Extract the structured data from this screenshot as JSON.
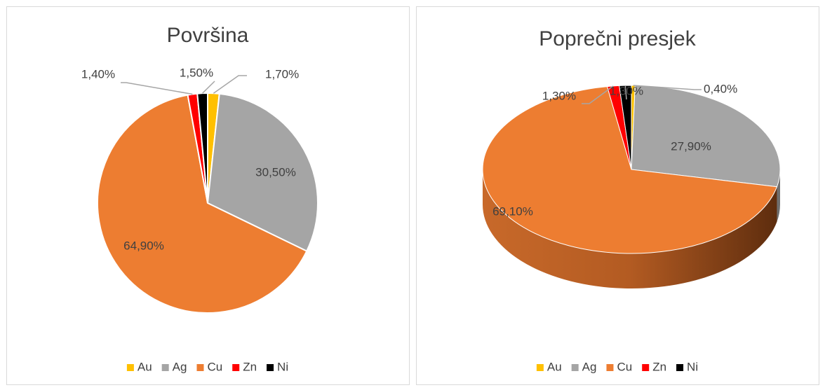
{
  "charts": [
    {
      "type": "pie",
      "title": "Površina",
      "categories": [
        "Au",
        "Ag",
        "Cu",
        "Zn",
        "Ni"
      ],
      "values": [
        1.7,
        30.5,
        64.9,
        1.4,
        1.5
      ],
      "value_labels": [
        "1,70%",
        "30,50%",
        "64,90%",
        "1,40%",
        "1,50%"
      ],
      "colors": [
        "#FFC000",
        "#A5A5A5",
        "#ED7D31",
        "#FF0000",
        "#000000"
      ],
      "legend": "bottom"
    },
    {
      "type": "pie3d",
      "title": "Poprečni presjek",
      "categories": [
        "Au",
        "Ag",
        "Cu",
        "Zn",
        "Ni"
      ],
      "values": [
        0.4,
        27.9,
        69.1,
        1.3,
        1.3
      ],
      "value_labels": [
        "0,40%",
        "27,90%",
        "69,10%",
        "1,30%",
        "1,30%"
      ],
      "colors": [
        "#FFC000",
        "#A5A5A5",
        "#ED7D31",
        "#FF0000",
        "#000000"
      ],
      "legend": "bottom"
    }
  ]
}
